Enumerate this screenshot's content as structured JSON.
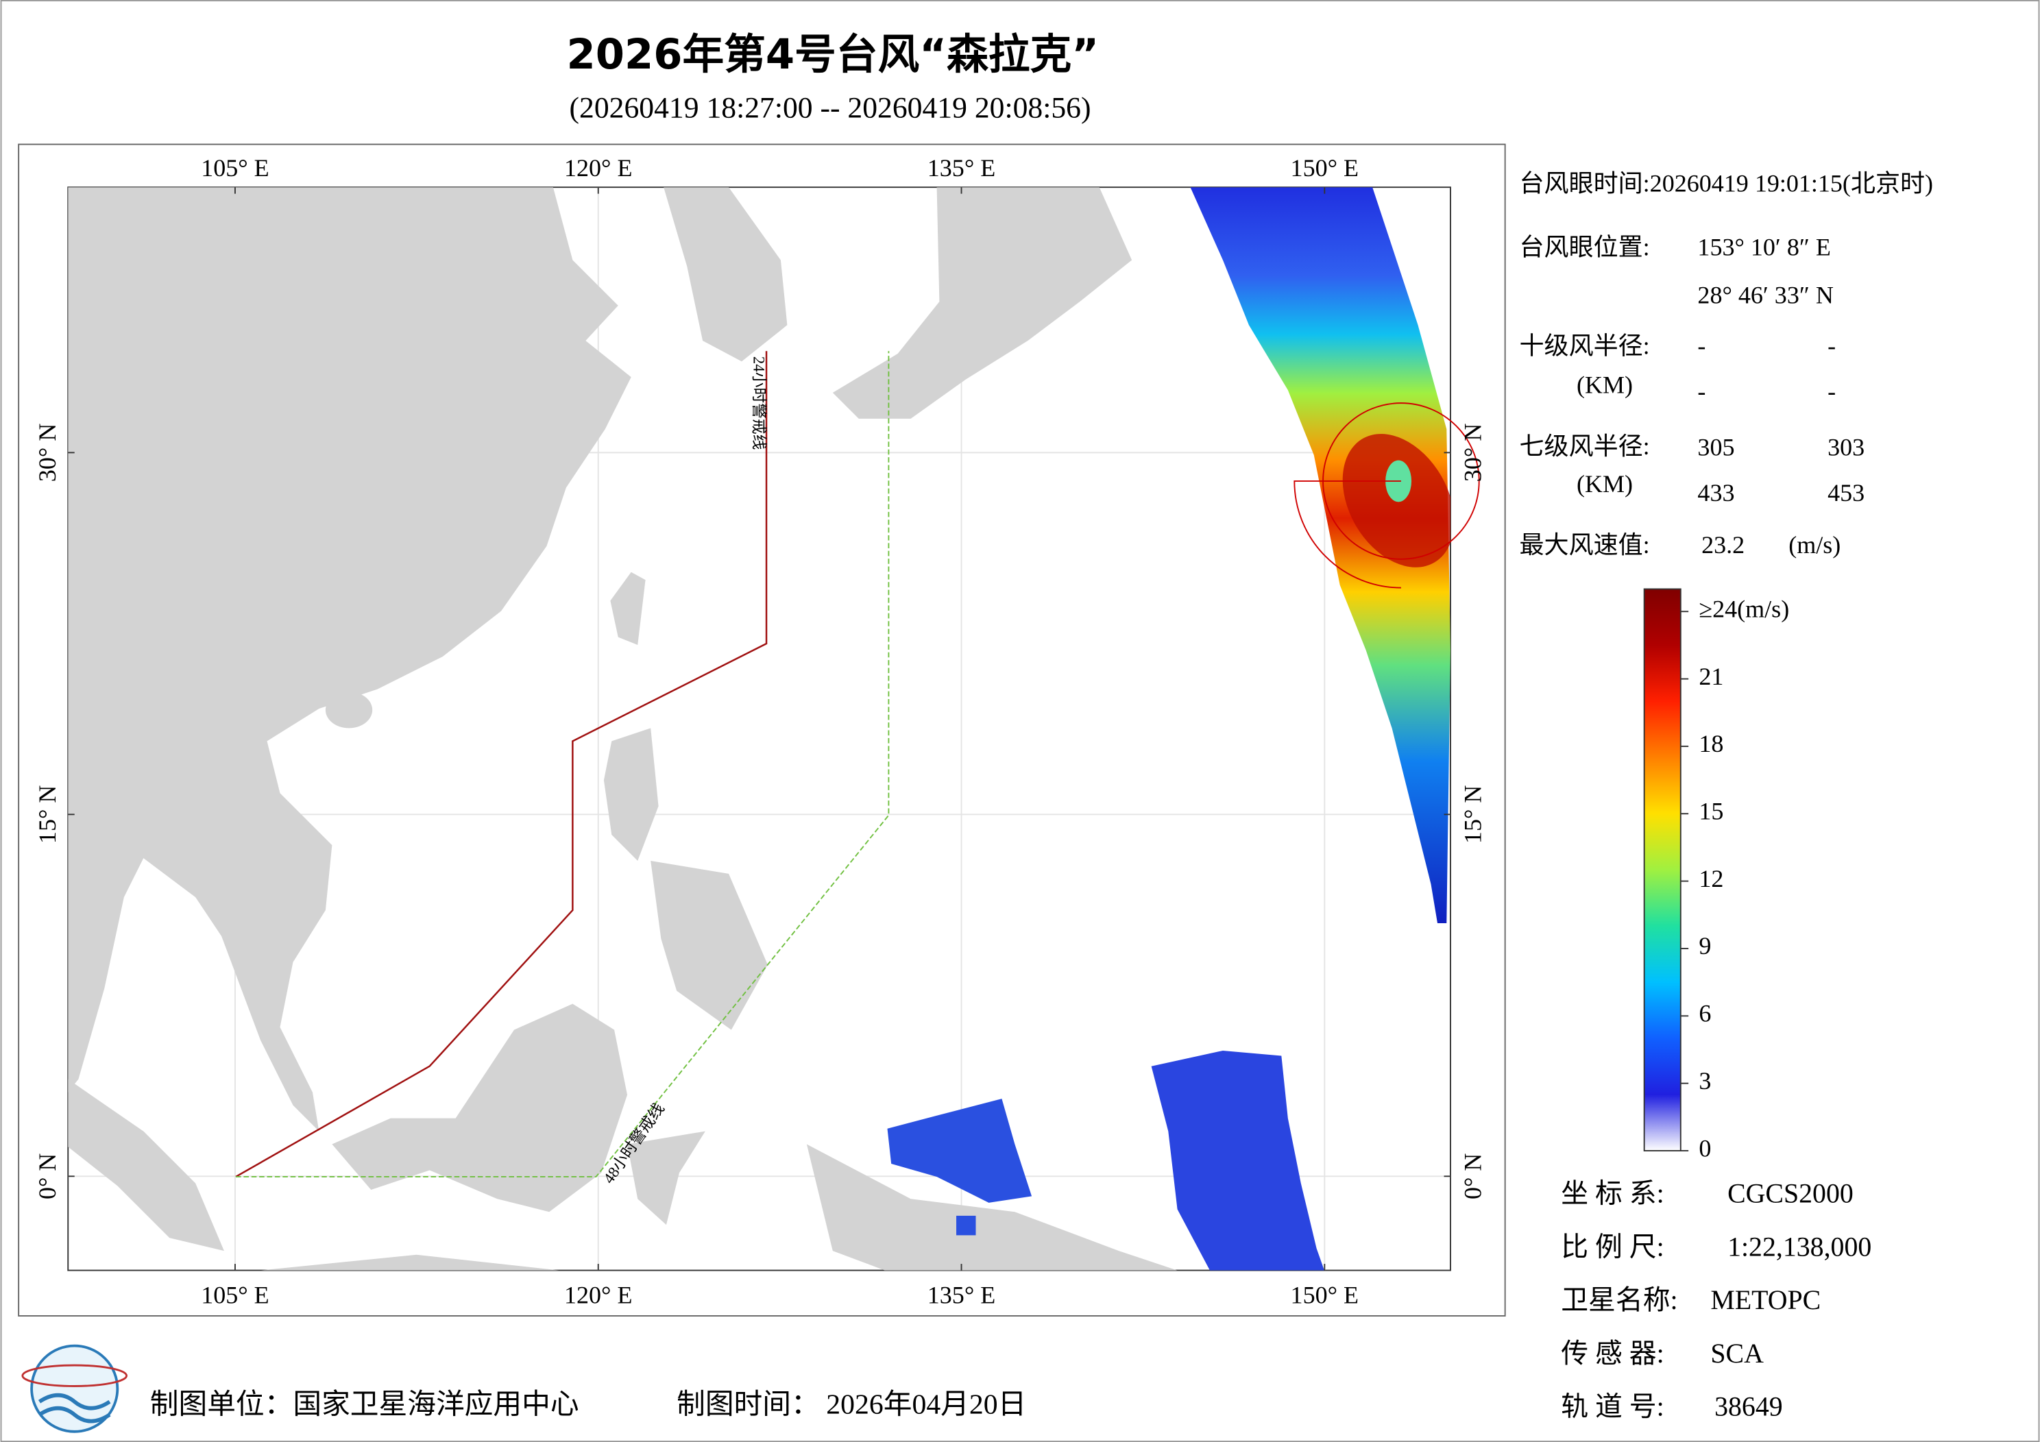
{
  "chart_data": {
    "type": "map",
    "title": "2026年第4号台风“森拉克”",
    "subtitle": "(20260419 18:27:00 -- 20260419 20:08:56)",
    "xlim": [
      98.1,
      155.2
    ],
    "ylim": [
      -3.9,
      41
    ],
    "xticks": [
      {
        "value": 105,
        "label": "105° E"
      },
      {
        "value": 120,
        "label": "120° E"
      },
      {
        "value": 135,
        "label": "135° E"
      },
      {
        "value": 150,
        "label": "150° E"
      }
    ],
    "yticks": [
      {
        "value": 0,
        "label": "0° N"
      },
      {
        "value": 15,
        "label": "15° N"
      },
      {
        "value": 30,
        "label": "30° N"
      }
    ],
    "grid": true,
    "warning_lines": [
      "24小时警戒线",
      "48小时警戒线"
    ],
    "colorbar": {
      "clim": [
        0,
        25
      ],
      "ticks": [
        0,
        3,
        6,
        9,
        12,
        15,
        18,
        21,
        {
          "value": 24,
          "label": "≥24(m/s)"
        }
      ],
      "colors": [
        "#ffffff",
        "#2020e0",
        "#1060ff",
        "#00c0ff",
        "#20e0a0",
        "#a0f040",
        "#ffe000",
        "#ff8000",
        "#ff2000",
        "#b00000",
        "#800000"
      ]
    }
  },
  "info": {
    "eye_time": "台风眼时间:20260419 19:01:15(北京时)",
    "eye_position_label": "台风眼位置:",
    "eye_lon": "153° 10′ 8″ E",
    "eye_lat": "28° 46′ 33″ N",
    "r10_label": "十级风半径:",
    "r10_unit": "(KM)",
    "r10": [
      "-",
      "-",
      "-",
      "-"
    ],
    "r7_label": "七级风半径:",
    "r7_unit": "(KM)",
    "r7": [
      305,
      303,
      433,
      453
    ],
    "max_wind_label": "最大风速值:",
    "max_wind": 23.2,
    "max_wind_unit": "(m/s)"
  },
  "meta": {
    "crs_label": "坐 标 系:",
    "crs": "CGCS2000",
    "scale_label": "比 例 尺:",
    "scale": "1:22,138,000",
    "satellite_label": "卫星名称:",
    "satellite": "METOPC",
    "sensor_label": "传 感 器:",
    "sensor": "SCA",
    "orbit_label": "轨 道 号:",
    "orbit": 38649
  },
  "footer": {
    "unit": "制图单位：国家卫星海洋应用中心",
    "date_label": "制图时间：",
    "date": "2026年04月20日"
  }
}
